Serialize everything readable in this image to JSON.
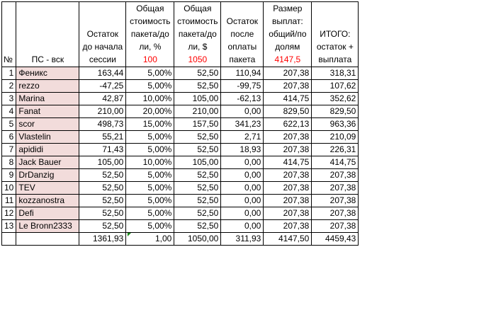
{
  "headers": {
    "num": "№",
    "ps": "ПС - вск",
    "balance_start": [
      "Остаток",
      "до начала",
      "сессии"
    ],
    "pct": [
      "Общая",
      "стоимость",
      "пакета/до",
      "ли, %"
    ],
    "dollar": [
      "Общая",
      "стоимость",
      "пакета/до",
      "ли, $"
    ],
    "balance_after": [
      "Остаток",
      "после",
      "оплаты",
      "пакета"
    ],
    "payout": [
      "Размер",
      "выплат:",
      "общий/по",
      "долям"
    ],
    "total": [
      "ИТОГО:",
      "остаток +",
      "выплата"
    ]
  },
  "header_values": {
    "pct": "100",
    "dollar": "1050",
    "payout": "4147,5"
  },
  "rows": [
    {
      "n": "1",
      "name": "Феникс",
      "start": "163,44",
      "pct": "5,00%",
      "usd": "52,50",
      "after": "110,94",
      "payout": "207,38",
      "total": "318,31"
    },
    {
      "n": "2",
      "name": "rezzo",
      "start": "-47,25",
      "pct": "5,00%",
      "usd": "52,50",
      "after": "-99,75",
      "payout": "207,38",
      "total": "107,62"
    },
    {
      "n": "3",
      "name": "Marina",
      "start": "42,87",
      "pct": "10,00%",
      "usd": "105,00",
      "after": "-62,13",
      "payout": "414,75",
      "total": "352,62"
    },
    {
      "n": "4",
      "name": "Fanat",
      "start": "210,00",
      "pct": "20,00%",
      "usd": "210,00",
      "after": "0,00",
      "payout": "829,50",
      "total": "829,50"
    },
    {
      "n": "5",
      "name": "scor",
      "start": "498,73",
      "pct": "15,00%",
      "usd": "157,50",
      "after": "341,23",
      "payout": "622,13",
      "total": "963,36"
    },
    {
      "n": "6",
      "name": "Vlastelin",
      "start": "55,21",
      "pct": "5,00%",
      "usd": "52,50",
      "after": "2,71",
      "payout": "207,38",
      "total": "210,09"
    },
    {
      "n": "7",
      "name": "apididi",
      "start": "71,43",
      "pct": "5,00%",
      "usd": "52,50",
      "after": "18,93",
      "payout": "207,38",
      "total": "226,31"
    },
    {
      "n": "8",
      "name": "Jack Bauer",
      "start": "105,00",
      "pct": "10,00%",
      "usd": "105,00",
      "after": "0,00",
      "payout": "414,75",
      "total": "414,75"
    },
    {
      "n": "9",
      "name": "DrDanzig",
      "start": "52,50",
      "pct": "5,00%",
      "usd": "52,50",
      "after": "0,00",
      "payout": "207,38",
      "total": "207,38"
    },
    {
      "n": "10",
      "name": "TEV",
      "start": "52,50",
      "pct": "5,00%",
      "usd": "52,50",
      "after": "0,00",
      "payout": "207,38",
      "total": "207,38"
    },
    {
      "n": "11",
      "name": "kozzanostra",
      "start": "52,50",
      "pct": "5,00%",
      "usd": "52,50",
      "after": "0,00",
      "payout": "207,38",
      "total": "207,38"
    },
    {
      "n": "12",
      "name": "Defi",
      "start": "52,50",
      "pct": "5,00%",
      "usd": "52,50",
      "after": "0,00",
      "payout": "207,38",
      "total": "207,38"
    },
    {
      "n": "13",
      "name": "Le Bronn2333",
      "start": "52,50",
      "pct": "5,00%",
      "usd": "52,50",
      "after": "0,00",
      "payout": "207,38",
      "total": "207,38"
    }
  ],
  "totals": {
    "start": "1361,93",
    "pct": "1,00",
    "usd": "1050,00",
    "after": "311,93",
    "payout": "4147,50",
    "total": "4459,43"
  },
  "colors": {
    "name_highlight": "#f2dcdb",
    "header_value_red": "#ff0000",
    "comment_marker": "#1a8a1a"
  }
}
